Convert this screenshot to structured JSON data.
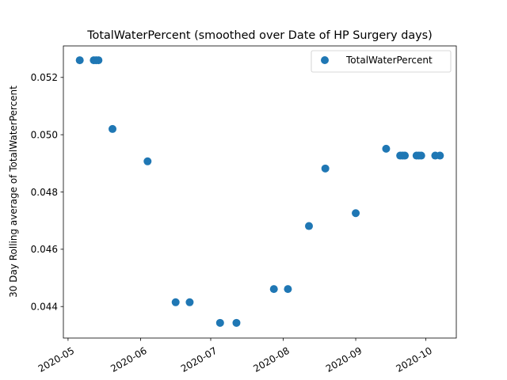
{
  "chart_data": {
    "type": "scatter",
    "title": "TotalWaterPercent (smoothed over Date of HP Surgery days)",
    "xlabel": "",
    "ylabel": "30 Day Rolling average of TotalWaterPercent",
    "x_type": "date",
    "xlim": [
      "2020-04-29",
      "2020-10-14"
    ],
    "ylim": [
      0.0429,
      0.0531
    ],
    "x_ticks": [
      "2020-05-01",
      "2020-06-01",
      "2020-07-01",
      "2020-08-01",
      "2020-09-01",
      "2020-10-01"
    ],
    "x_tick_labels": [
      "2020-05",
      "2020-06",
      "2020-07",
      "2020-08",
      "2020-09",
      "2020-10"
    ],
    "y_ticks": [
      0.044,
      0.046,
      0.048,
      0.05,
      0.052
    ],
    "y_tick_labels": [
      "0.044",
      "0.046",
      "0.048",
      "0.050",
      "0.052"
    ],
    "legend_position": "top-right",
    "grid": false,
    "series": [
      {
        "name": "TotalWaterPercent",
        "color": "#1f77b4",
        "points": [
          {
            "x": "2020-05-06",
            "y": 0.0526
          },
          {
            "x": "2020-05-12",
            "y": 0.0526
          },
          {
            "x": "2020-05-13",
            "y": 0.0526
          },
          {
            "x": "2020-05-14",
            "y": 0.0526
          },
          {
            "x": "2020-05-20",
            "y": 0.0502
          },
          {
            "x": "2020-06-04",
            "y": 0.04907
          },
          {
            "x": "2020-06-16",
            "y": 0.04415
          },
          {
            "x": "2020-06-22",
            "y": 0.04415
          },
          {
            "x": "2020-07-05",
            "y": 0.04343
          },
          {
            "x": "2020-07-12",
            "y": 0.04343
          },
          {
            "x": "2020-07-28",
            "y": 0.04461
          },
          {
            "x": "2020-08-03",
            "y": 0.04461
          },
          {
            "x": "2020-08-12",
            "y": 0.04681
          },
          {
            "x": "2020-08-19",
            "y": 0.04882
          },
          {
            "x": "2020-09-01",
            "y": 0.04726
          },
          {
            "x": "2020-09-14",
            "y": 0.04951
          },
          {
            "x": "2020-09-20",
            "y": 0.04927
          },
          {
            "x": "2020-09-21",
            "y": 0.04927
          },
          {
            "x": "2020-09-22",
            "y": 0.04927
          },
          {
            "x": "2020-09-27",
            "y": 0.04927
          },
          {
            "x": "2020-09-28",
            "y": 0.04927
          },
          {
            "x": "2020-09-29",
            "y": 0.04927
          },
          {
            "x": "2020-10-05",
            "y": 0.04927
          },
          {
            "x": "2020-10-07",
            "y": 0.04927
          }
        ]
      }
    ]
  }
}
